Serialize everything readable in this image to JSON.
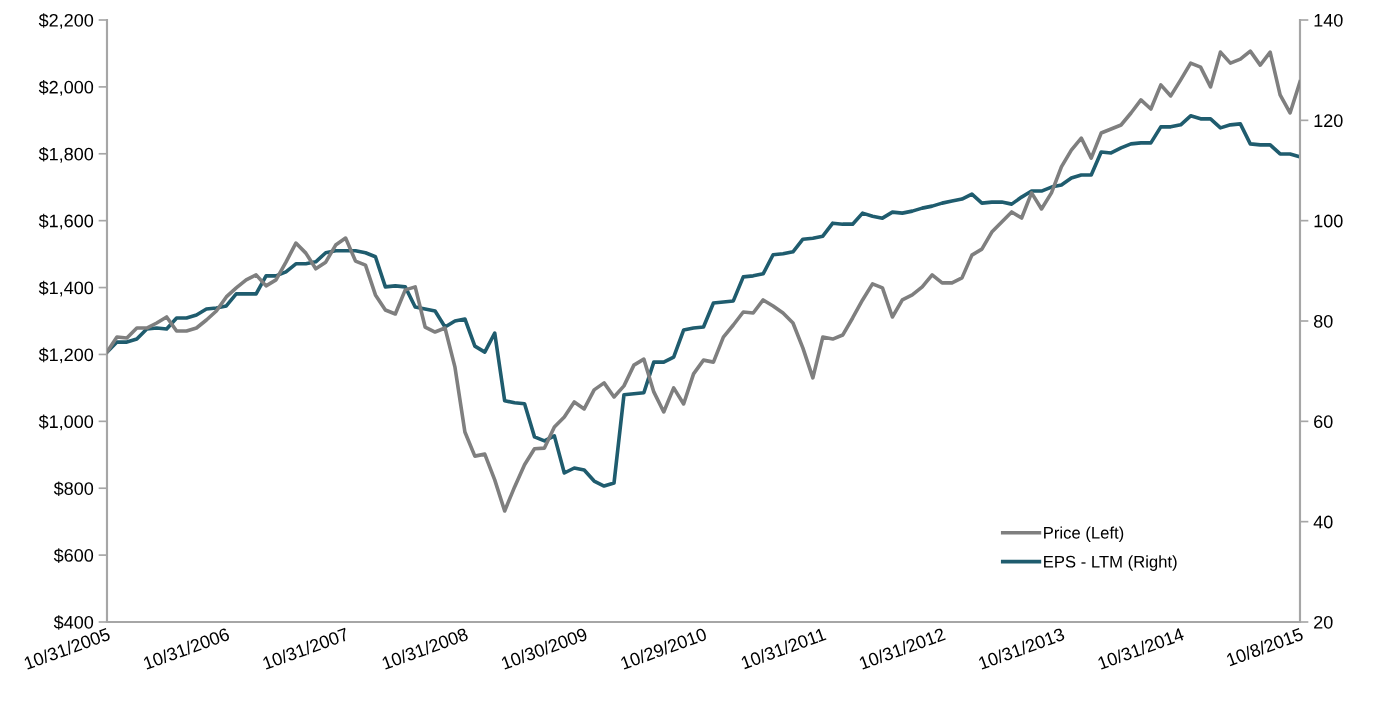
{
  "chart_data": {
    "type": "line",
    "categories": [
      "10/31/2005",
      null,
      null,
      null,
      null,
      null,
      null,
      null,
      null,
      null,
      null,
      null,
      "10/31/2006",
      null,
      null,
      null,
      null,
      null,
      null,
      null,
      null,
      null,
      null,
      null,
      "10/31/2007",
      null,
      null,
      null,
      null,
      null,
      null,
      null,
      null,
      null,
      null,
      null,
      "10/31/2008",
      null,
      null,
      null,
      null,
      null,
      null,
      null,
      null,
      null,
      null,
      null,
      "10/30/2009",
      null,
      null,
      null,
      null,
      null,
      null,
      null,
      null,
      null,
      null,
      null,
      "10/29/2010",
      null,
      null,
      null,
      null,
      null,
      null,
      null,
      null,
      null,
      null,
      null,
      "10/31/2011",
      null,
      null,
      null,
      null,
      null,
      null,
      null,
      null,
      null,
      null,
      null,
      "10/31/2012",
      null,
      null,
      null,
      null,
      null,
      null,
      null,
      null,
      null,
      null,
      null,
      "10/31/2013",
      null,
      null,
      null,
      null,
      null,
      null,
      null,
      null,
      null,
      null,
      null,
      "10/31/2014",
      null,
      null,
      null,
      null,
      null,
      null,
      null,
      null,
      null,
      null,
      null,
      "10/8/2015"
    ],
    "series": [
      {
        "name": "Price (Left)",
        "color": "#7f7f7f",
        "axis": "y",
        "values": [
          1207,
          1252,
          1249,
          1279,
          1279,
          1294,
          1312,
          1270,
          1270,
          1279,
          1303,
          1330,
          1372,
          1399,
          1423,
          1438,
          1405,
          1423,
          1476,
          1533,
          1503,
          1456,
          1476,
          1527,
          1548,
          1479,
          1467,
          1378,
          1333,
          1321,
          1393,
          1402,
          1282,
          1267,
          1279,
          1162,
          968,
          896,
          902,
          825,
          732,
          804,
          870,
          918,
          920,
          983,
          1013,
          1058,
          1037,
          1094,
          1115,
          1073,
          1106,
          1168,
          1186,
          1088,
          1028,
          1100,
          1052,
          1142,
          1183,
          1177,
          1252,
          1288,
          1327,
          1324,
          1363,
          1345,
          1324,
          1294,
          1219,
          1130,
          1252,
          1246,
          1258,
          1309,
          1363,
          1411,
          1399,
          1312,
          1363,
          1378,
          1402,
          1438,
          1414,
          1414,
          1429,
          1497,
          1515,
          1566,
          1596,
          1626,
          1608,
          1683,
          1635,
          1683,
          1761,
          1811,
          1847,
          1787,
          1862,
          1874,
          1886,
          1922,
          1961,
          1934,
          2006,
          1973,
          2021,
          2071,
          2059,
          2000,
          2104,
          2071,
          2083,
          2107,
          2065,
          2104,
          1976,
          1922,
          2015
        ]
      },
      {
        "name": "EPS - LTM (Right)",
        "color": "#1f5c6e",
        "axis": "y2",
        "values": [
          73.8,
          75.8,
          75.8,
          76.4,
          78.4,
          78.6,
          78.4,
          80.6,
          80.6,
          81.2,
          82.4,
          82.6,
          83.0,
          85.4,
          85.4,
          85.4,
          89.0,
          89.0,
          89.8,
          91.4,
          91.4,
          91.8,
          93.6,
          94.0,
          94.0,
          94.0,
          93.6,
          92.8,
          86.8,
          87.0,
          86.8,
          82.8,
          82.4,
          82.0,
          78.8,
          80.0,
          80.4,
          75.0,
          73.8,
          77.6,
          64.1,
          63.7,
          63.5,
          56.9,
          56.1,
          57.1,
          49.7,
          50.7,
          50.3,
          48.1,
          47.1,
          47.7,
          65.3,
          65.5,
          65.7,
          71.8,
          71.8,
          72.8,
          78.2,
          78.6,
          78.8,
          83.6,
          83.8,
          84.0,
          88.8,
          89.0,
          89.4,
          93.2,
          93.4,
          93.8,
          96.3,
          96.5,
          96.9,
          99.5,
          99.3,
          99.3,
          101.5,
          100.9,
          100.5,
          101.7,
          101.5,
          101.9,
          102.5,
          102.9,
          103.5,
          103.9,
          104.3,
          105.3,
          103.5,
          103.7,
          103.7,
          103.3,
          104.7,
          105.9,
          105.9,
          106.7,
          107.1,
          108.5,
          109.1,
          109.1,
          113.7,
          113.5,
          114.5,
          115.3,
          115.5,
          115.5,
          118.7,
          118.7,
          119.1,
          120.9,
          120.3,
          120.3,
          118.5,
          119.1,
          119.3,
          115.3,
          115.1,
          115.1,
          113.3,
          113.3,
          112.7
        ]
      }
    ],
    "ylim": [
      400,
      2200
    ],
    "yticks": [
      {
        "value": 400,
        "label": "$400"
      },
      {
        "value": 600,
        "label": "$600"
      },
      {
        "value": 800,
        "label": "$800"
      },
      {
        "value": 1000,
        "label": "$1,000"
      },
      {
        "value": 1200,
        "label": "$1,200"
      },
      {
        "value": 1400,
        "label": "$1,400"
      },
      {
        "value": 1600,
        "label": "$1,600"
      },
      {
        "value": 1800,
        "label": "$1,800"
      },
      {
        "value": 2000,
        "label": "$2,000"
      },
      {
        "value": 2200,
        "label": "$2,200"
      }
    ],
    "y2lim": [
      20,
      140
    ],
    "y2ticks": [
      20,
      40,
      60,
      80,
      100,
      120,
      140
    ],
    "grid": false,
    "legend": "bottom right",
    "marker": "none",
    "line_style": "solid"
  }
}
